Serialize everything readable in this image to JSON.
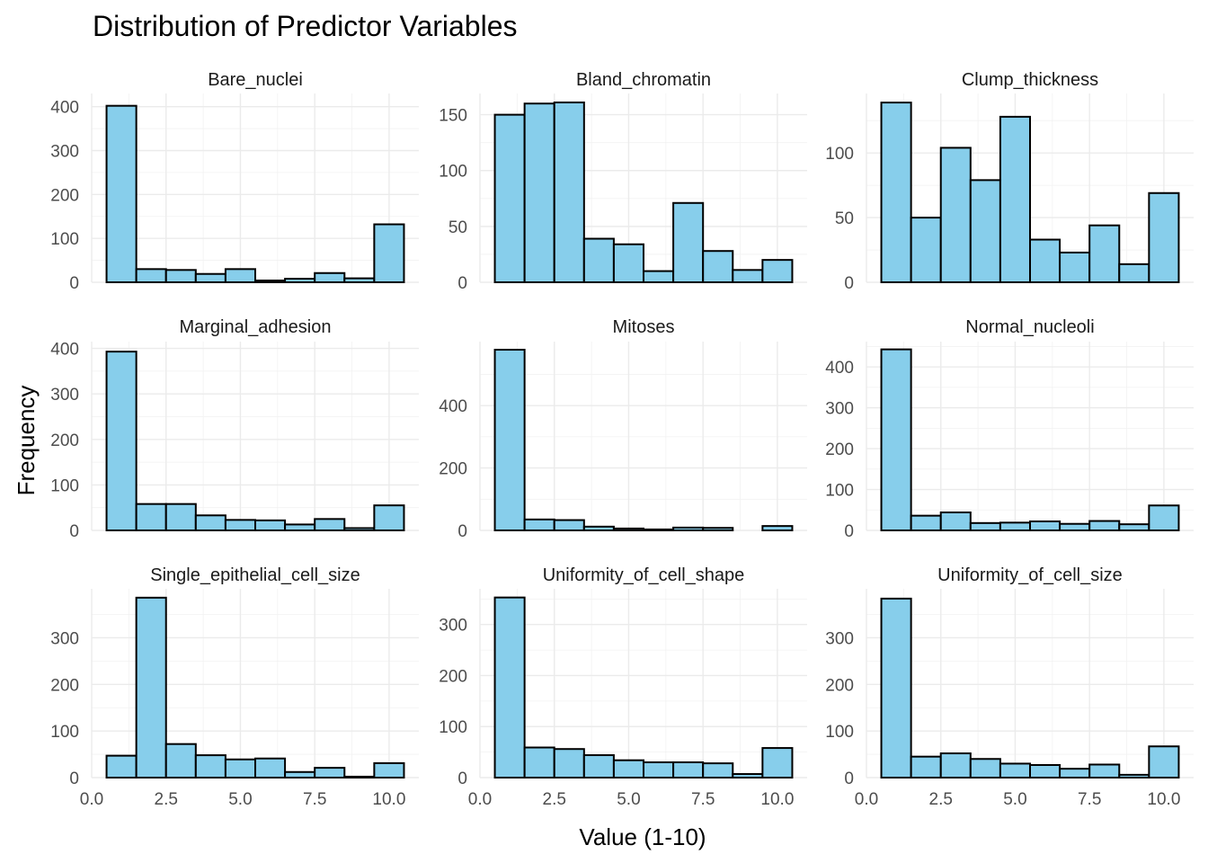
{
  "title": "Distribution of Predictor Variables",
  "xlabel": "Value (1-10)",
  "ylabel": "Frequency",
  "colors": {
    "bar_fill": "#87CEEB",
    "bar_stroke": "#000000",
    "grid": "#EBEBEB"
  },
  "chart_data": [
    {
      "type": "bar",
      "panel": "Bare_nuclei",
      "bin_centers": [
        1,
        2,
        3,
        4,
        5,
        6,
        7,
        8,
        9,
        10
      ],
      "values": [
        402,
        30,
        28,
        19,
        30,
        4,
        8,
        21,
        9,
        132
      ],
      "ylim": [
        0,
        430
      ],
      "yticks": [
        0,
        100,
        200,
        300,
        400
      ],
      "yminor": [
        50,
        150,
        250,
        350
      ],
      "xlim": [
        0,
        11
      ],
      "xticks": [
        0,
        2.5,
        5,
        7.5,
        10
      ],
      "xtick_labels": [
        "0.0",
        "2.5",
        "5.0",
        "7.5",
        "10.0"
      ],
      "show_xticks": false
    },
    {
      "type": "bar",
      "panel": "Bland_chromatin",
      "bin_centers": [
        1,
        2,
        3,
        4,
        5,
        6,
        7,
        8,
        9,
        10
      ],
      "values": [
        150,
        160,
        161,
        39,
        34,
        10,
        71,
        28,
        11,
        20
      ],
      "ylim": [
        0,
        169
      ],
      "yticks": [
        0,
        50,
        100,
        150
      ],
      "yminor": [
        25,
        75,
        125
      ],
      "xlim": [
        0,
        11
      ],
      "xticks": [
        0,
        2.5,
        5,
        7.5,
        10
      ],
      "xtick_labels": [
        "0.0",
        "2.5",
        "5.0",
        "7.5",
        "10.0"
      ],
      "show_xticks": false
    },
    {
      "type": "bar",
      "panel": "Clump_thickness",
      "bin_centers": [
        1,
        2,
        3,
        4,
        5,
        6,
        7,
        8,
        9,
        10
      ],
      "values": [
        139,
        50,
        104,
        79,
        128,
        33,
        23,
        44,
        14,
        69
      ],
      "ylim": [
        0,
        146
      ],
      "yticks": [
        0,
        50,
        100
      ],
      "yminor": [
        25,
        75,
        125
      ],
      "xlim": [
        0,
        11
      ],
      "xticks": [
        0,
        2.5,
        5,
        7.5,
        10
      ],
      "xtick_labels": [
        "0.0",
        "2.5",
        "5.0",
        "7.5",
        "10.0"
      ],
      "show_xticks": false
    },
    {
      "type": "bar",
      "panel": "Marginal_adhesion",
      "bin_centers": [
        1,
        2,
        3,
        4,
        5,
        6,
        7,
        8,
        9,
        10
      ],
      "values": [
        393,
        58,
        58,
        33,
        23,
        22,
        13,
        25,
        5,
        55
      ],
      "ylim": [
        0,
        415
      ],
      "yticks": [
        0,
        100,
        200,
        300,
        400
      ],
      "yminor": [
        50,
        150,
        250,
        350
      ],
      "xlim": [
        0,
        11
      ],
      "xticks": [
        0,
        2.5,
        5,
        7.5,
        10
      ],
      "xtick_labels": [
        "0.0",
        "2.5",
        "5.0",
        "7.5",
        "10.0"
      ],
      "show_xticks": false
    },
    {
      "type": "bar",
      "panel": "Mitoses",
      "bin_centers": [
        1,
        2,
        3,
        4,
        5,
        6,
        7,
        8,
        9,
        10
      ],
      "values": [
        579,
        35,
        33,
        12,
        6,
        3,
        9,
        8,
        0,
        14
      ],
      "ylim": [
        0,
        605
      ],
      "yticks": [
        0,
        200,
        400
      ],
      "yminor": [
        100,
        300,
        500
      ],
      "xlim": [
        0,
        11
      ],
      "xticks": [
        0,
        2.5,
        5,
        7.5,
        10
      ],
      "xtick_labels": [
        "0.0",
        "2.5",
        "5.0",
        "7.5",
        "10.0"
      ],
      "show_xticks": false
    },
    {
      "type": "bar",
      "panel": "Normal_nucleoli",
      "bin_centers": [
        1,
        2,
        3,
        4,
        5,
        6,
        7,
        8,
        9,
        10
      ],
      "values": [
        443,
        36,
        44,
        18,
        19,
        22,
        16,
        23,
        15,
        61
      ],
      "ylim": [
        0,
        462
      ],
      "yticks": [
        0,
        100,
        200,
        300,
        400
      ],
      "yminor": [
        50,
        150,
        250,
        350,
        450
      ],
      "xlim": [
        0,
        11
      ],
      "xticks": [
        0,
        2.5,
        5,
        7.5,
        10
      ],
      "xtick_labels": [
        "0.0",
        "2.5",
        "5.0",
        "7.5",
        "10.0"
      ],
      "show_xticks": false
    },
    {
      "type": "bar",
      "panel": "Single_epithelial_cell_size",
      "bin_centers": [
        1,
        2,
        3,
        4,
        5,
        6,
        7,
        8,
        9,
        10
      ],
      "values": [
        47,
        386,
        72,
        48,
        39,
        41,
        12,
        21,
        2,
        31
      ],
      "ylim": [
        0,
        405
      ],
      "yticks": [
        0,
        100,
        200,
        300
      ],
      "yminor": [
        50,
        150,
        250,
        350
      ],
      "xlim": [
        0,
        11
      ],
      "xticks": [
        0,
        2.5,
        5,
        7.5,
        10
      ],
      "xtick_labels": [
        "0.0",
        "2.5",
        "5.0",
        "7.5",
        "10.0"
      ],
      "show_xticks": true
    },
    {
      "type": "bar",
      "panel": "Uniformity_of_cell_shape",
      "bin_centers": [
        1,
        2,
        3,
        4,
        5,
        6,
        7,
        8,
        9,
        10
      ],
      "values": [
        353,
        59,
        56,
        44,
        34,
        30,
        30,
        28,
        7,
        58
      ],
      "ylim": [
        0,
        370
      ],
      "yticks": [
        0,
        100,
        200,
        300
      ],
      "yminor": [
        50,
        150,
        250,
        350
      ],
      "xlim": [
        0,
        11
      ],
      "xticks": [
        0,
        2.5,
        5,
        7.5,
        10
      ],
      "xtick_labels": [
        "0.0",
        "2.5",
        "5.0",
        "7.5",
        "10.0"
      ],
      "show_xticks": true
    },
    {
      "type": "bar",
      "panel": "Uniformity_of_cell_size",
      "bin_centers": [
        1,
        2,
        3,
        4,
        5,
        6,
        7,
        8,
        9,
        10
      ],
      "values": [
        384,
        45,
        52,
        40,
        30,
        27,
        19,
        28,
        6,
        67
      ],
      "ylim": [
        0,
        405
      ],
      "yticks": [
        0,
        100,
        200,
        300
      ],
      "yminor": [
        50,
        150,
        250,
        350
      ],
      "xlim": [
        0,
        11
      ],
      "xticks": [
        0,
        2.5,
        5,
        7.5,
        10
      ],
      "xtick_labels": [
        "0.0",
        "2.5",
        "5.0",
        "7.5",
        "10.0"
      ],
      "show_xticks": true
    }
  ]
}
